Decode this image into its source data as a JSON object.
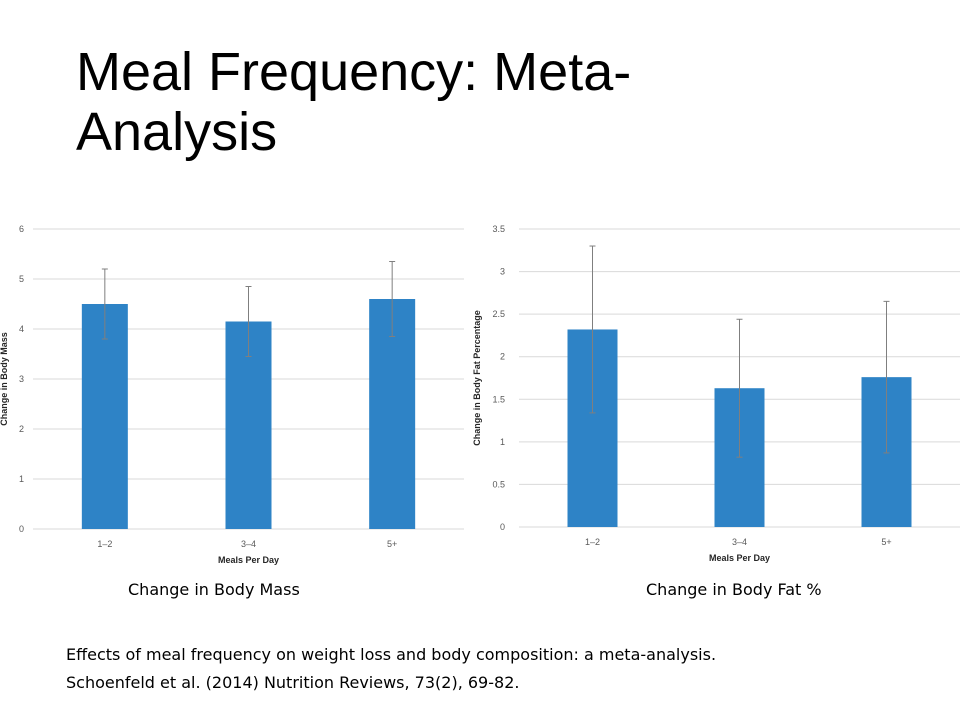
{
  "slide": {
    "title": "Meal Frequency: Meta-Analysis",
    "caption_left": "Change in Body Mass",
    "caption_right": "Change in Body Fat %",
    "citation_line1": "Effects of meal frequency on weight loss and body composition: a meta-analysis.",
    "citation_line2": "Schoenfeld et al. (2014) Nutrition Reviews, 73(2), 69-82."
  },
  "colors": {
    "bar": "#2e83c6",
    "grid": "#d9d9d9",
    "error_bar": "#7f7f7f"
  },
  "chart_data": [
    {
      "type": "bar",
      "categories": [
        "1–2",
        "3–4",
        "5+"
      ],
      "values": [
        4.5,
        4.15,
        4.6
      ],
      "error_upper": [
        5.2,
        4.85,
        5.35
      ],
      "error_lower": [
        3.8,
        3.45,
        3.85
      ],
      "xlabel": "Meals Per Day",
      "ylabel": "Change in Body Mass",
      "ylim": [
        0,
        6
      ],
      "yticks": [
        0,
        1,
        2,
        3,
        4,
        5,
        6
      ],
      "grid": true
    },
    {
      "type": "bar",
      "categories": [
        "1–2",
        "3–4",
        "5+"
      ],
      "values": [
        2.32,
        1.63,
        1.76
      ],
      "error_upper": [
        3.3,
        2.44,
        2.65
      ],
      "error_lower": [
        1.34,
        0.82,
        0.87
      ],
      "xlabel": "Meals Per Day",
      "ylabel": "Change in Body Fat Percentage",
      "ylim": [
        0,
        3.5
      ],
      "yticks": [
        0,
        0.5,
        1,
        1.5,
        2,
        2.5,
        3,
        3.5
      ],
      "grid": true
    }
  ]
}
